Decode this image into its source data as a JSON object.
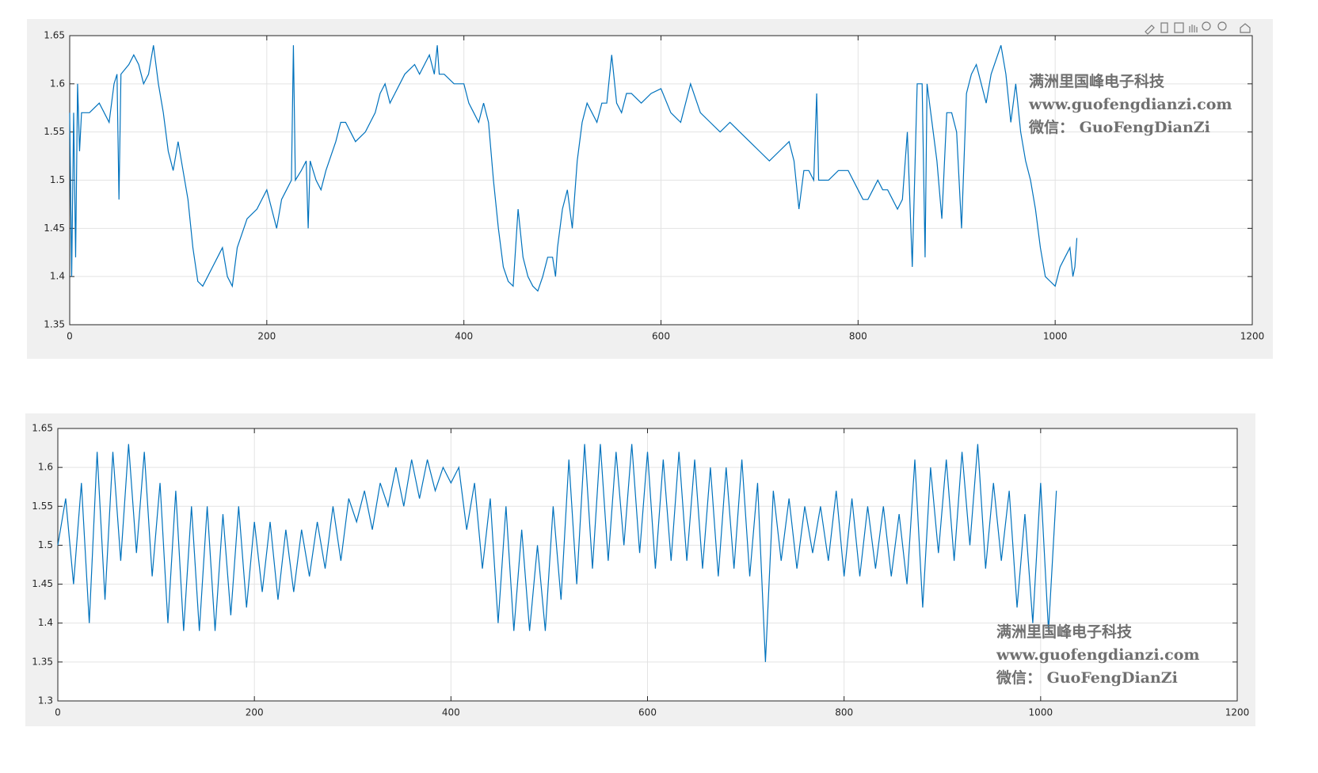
{
  "chart_data": [
    {
      "type": "line",
      "grid": true,
      "color": "#0072bd",
      "annotations": [
        "满洲里国峰电子科技",
        "www.guofengdianzi.com",
        "微信： GuoFengDianZi"
      ],
      "xlim": [
        0,
        1200
      ],
      "xticks": [
        0,
        200,
        400,
        600,
        800,
        1000,
        1200
      ],
      "ylim": [
        1.35,
        1.65
      ],
      "yticks": [
        1.35,
        1.4,
        1.45,
        1.5,
        1.55,
        1.6,
        1.65
      ],
      "x": [
        0,
        2,
        4,
        6,
        8,
        10,
        12,
        20,
        30,
        35,
        40,
        45,
        48,
        50,
        52,
        60,
        65,
        70,
        75,
        80,
        85,
        90,
        95,
        100,
        105,
        110,
        115,
        120,
        125,
        130,
        135,
        140,
        145,
        150,
        155,
        160,
        165,
        170,
        180,
        190,
        200,
        205,
        210,
        215,
        220,
        225,
        227,
        229,
        235,
        240,
        242,
        244,
        250,
        255,
        260,
        270,
        275,
        280,
        285,
        290,
        300,
        310,
        315,
        320,
        325,
        330,
        340,
        350,
        355,
        360,
        365,
        370,
        373,
        375,
        380,
        390,
        400,
        405,
        410,
        415,
        420,
        425,
        430,
        435,
        440,
        445,
        450,
        455,
        460,
        465,
        470,
        475,
        480,
        485,
        490,
        493,
        495,
        500,
        505,
        510,
        515,
        520,
        525,
        530,
        535,
        540,
        545,
        550,
        555,
        560,
        565,
        570,
        580,
        590,
        600,
        610,
        620,
        630,
        640,
        650,
        660,
        670,
        680,
        690,
        700,
        710,
        720,
        730,
        735,
        740,
        745,
        750,
        755,
        758,
        760,
        770,
        780,
        790,
        800,
        805,
        810,
        815,
        820,
        825,
        830,
        835,
        840,
        845,
        850,
        855,
        860,
        865,
        868,
        870,
        875,
        880,
        885,
        890,
        895,
        900,
        905,
        910,
        915,
        920,
        925,
        930,
        935,
        940,
        945,
        950,
        955,
        960,
        965,
        970,
        975,
        980,
        985,
        990,
        995,
        1000,
        1005,
        1010,
        1015,
        1018,
        1020,
        1022
      ],
      "values": [
        1.57,
        1.4,
        1.57,
        1.42,
        1.6,
        1.53,
        1.57,
        1.57,
        1.58,
        1.57,
        1.56,
        1.6,
        1.61,
        1.48,
        1.61,
        1.62,
        1.63,
        1.62,
        1.6,
        1.61,
        1.64,
        1.6,
        1.57,
        1.53,
        1.51,
        1.54,
        1.51,
        1.48,
        1.43,
        1.395,
        1.39,
        1.4,
        1.41,
        1.42,
        1.43,
        1.4,
        1.39,
        1.43,
        1.46,
        1.47,
        1.49,
        1.47,
        1.45,
        1.48,
        1.49,
        1.5,
        1.64,
        1.5,
        1.51,
        1.52,
        1.45,
        1.52,
        1.5,
        1.49,
        1.51,
        1.54,
        1.56,
        1.56,
        1.55,
        1.54,
        1.55,
        1.57,
        1.59,
        1.6,
        1.58,
        1.59,
        1.61,
        1.62,
        1.61,
        1.62,
        1.63,
        1.61,
        1.64,
        1.61,
        1.61,
        1.6,
        1.6,
        1.58,
        1.57,
        1.56,
        1.58,
        1.56,
        1.5,
        1.45,
        1.41,
        1.395,
        1.39,
        1.47,
        1.42,
        1.4,
        1.39,
        1.385,
        1.4,
        1.42,
        1.42,
        1.4,
        1.43,
        1.47,
        1.49,
        1.45,
        1.52,
        1.56,
        1.58,
        1.57,
        1.56,
        1.58,
        1.58,
        1.63,
        1.58,
        1.57,
        1.59,
        1.59,
        1.58,
        1.59,
        1.595,
        1.57,
        1.56,
        1.6,
        1.57,
        1.56,
        1.55,
        1.56,
        1.55,
        1.54,
        1.53,
        1.52,
        1.53,
        1.54,
        1.52,
        1.47,
        1.51,
        1.51,
        1.5,
        1.59,
        1.5,
        1.5,
        1.51,
        1.51,
        1.49,
        1.48,
        1.48,
        1.49,
        1.5,
        1.49,
        1.49,
        1.48,
        1.47,
        1.48,
        1.55,
        1.41,
        1.6,
        1.6,
        1.42,
        1.6,
        1.56,
        1.52,
        1.46,
        1.57,
        1.57,
        1.55,
        1.45,
        1.59,
        1.61,
        1.62,
        1.6,
        1.58,
        1.61,
        1.625,
        1.64,
        1.61,
        1.56,
        1.6,
        1.55,
        1.52,
        1.5,
        1.47,
        1.43,
        1.4,
        1.395,
        1.39,
        1.41,
        1.42,
        1.43,
        1.4,
        1.41,
        1.44
      ]
    },
    {
      "type": "line",
      "grid": true,
      "color": "#0072bd",
      "annotations": [
        "满洲里国峰电子科技",
        "www.guofengdianzi.com",
        "微信： GuoFengDianZi"
      ],
      "xlim": [
        0,
        1200
      ],
      "xticks": [
        0,
        200,
        400,
        600,
        800,
        1000,
        1200
      ],
      "ylim": [
        1.3,
        1.65
      ],
      "yticks": [
        1.3,
        1.35,
        1.4,
        1.45,
        1.5,
        1.55,
        1.6,
        1.65
      ],
      "x": [
        0,
        8,
        16,
        24,
        32,
        40,
        48,
        56,
        64,
        72,
        80,
        88,
        96,
        104,
        112,
        120,
        128,
        136,
        144,
        152,
        160,
        168,
        176,
        184,
        192,
        200,
        208,
        216,
        224,
        232,
        240,
        248,
        256,
        264,
        272,
        280,
        288,
        296,
        304,
        312,
        320,
        328,
        336,
        344,
        352,
        360,
        368,
        376,
        384,
        392,
        400,
        408,
        416,
        424,
        432,
        440,
        448,
        456,
        464,
        472,
        480,
        488,
        496,
        504,
        512,
        520,
        528,
        536,
        544,
        552,
        560,
        568,
        576,
        584,
        592,
        600,
        608,
        616,
        624,
        632,
        640,
        648,
        656,
        664,
        672,
        680,
        688,
        696,
        704,
        712,
        720,
        728,
        736,
        744,
        752,
        760,
        768,
        776,
        784,
        792,
        800,
        808,
        816,
        824,
        832,
        840,
        848,
        856,
        864,
        872,
        880,
        888,
        896,
        904,
        912,
        920,
        928,
        936,
        944,
        952,
        960,
        968,
        976,
        984,
        992,
        1000,
        1008,
        1016
      ],
      "values": [
        1.5,
        1.56,
        1.45,
        1.58,
        1.4,
        1.62,
        1.43,
        1.62,
        1.48,
        1.63,
        1.49,
        1.62,
        1.46,
        1.58,
        1.4,
        1.57,
        1.39,
        1.55,
        1.39,
        1.55,
        1.39,
        1.54,
        1.41,
        1.55,
        1.42,
        1.53,
        1.44,
        1.53,
        1.43,
        1.52,
        1.44,
        1.52,
        1.46,
        1.53,
        1.47,
        1.55,
        1.48,
        1.56,
        1.53,
        1.57,
        1.52,
        1.58,
        1.55,
        1.6,
        1.55,
        1.61,
        1.56,
        1.61,
        1.57,
        1.6,
        1.58,
        1.6,
        1.52,
        1.58,
        1.47,
        1.56,
        1.4,
        1.55,
        1.39,
        1.52,
        1.39,
        1.5,
        1.39,
        1.55,
        1.43,
        1.61,
        1.45,
        1.63,
        1.47,
        1.63,
        1.48,
        1.62,
        1.5,
        1.63,
        1.49,
        1.62,
        1.47,
        1.61,
        1.48,
        1.62,
        1.48,
        1.61,
        1.47,
        1.6,
        1.46,
        1.6,
        1.47,
        1.61,
        1.46,
        1.58,
        1.35,
        1.57,
        1.48,
        1.56,
        1.47,
        1.55,
        1.49,
        1.55,
        1.48,
        1.57,
        1.46,
        1.56,
        1.46,
        1.55,
        1.47,
        1.55,
        1.46,
        1.54,
        1.45,
        1.61,
        1.42,
        1.6,
        1.49,
        1.61,
        1.48,
        1.62,
        1.5,
        1.63,
        1.47,
        1.58,
        1.48,
        1.57,
        1.42,
        1.54,
        1.4,
        1.58,
        1.39,
        1.57
      ]
    }
  ]
}
